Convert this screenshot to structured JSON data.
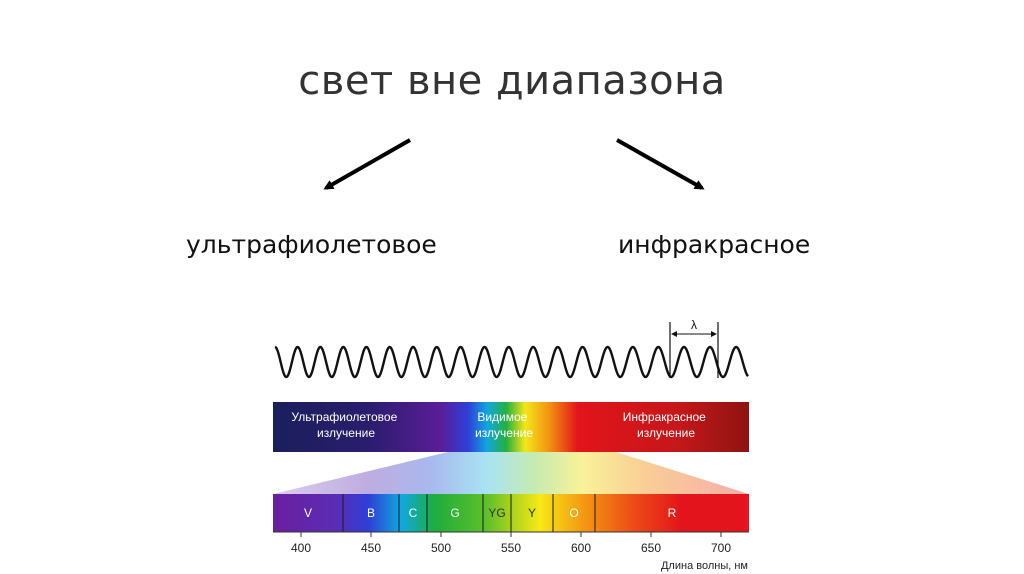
{
  "slide": {
    "title": "свет вне диапазона",
    "uv_label": "ультрафиолетовое",
    "ir_label": "инфракрасное"
  },
  "spectrum": {
    "lambda_symbol": "λ",
    "region_bar": {
      "uv": [
        "Ультрафиолетовое",
        "излучение"
      ],
      "visible": [
        "Видимое",
        "излучение"
      ],
      "ir": [
        "Инфракрасное",
        "излучение"
      ]
    },
    "bands": [
      {
        "name": "V",
        "from": 380,
        "to": 430
      },
      {
        "name": "B",
        "from": 430,
        "to": 470
      },
      {
        "name": "C",
        "from": 470,
        "to": 490
      },
      {
        "name": "G",
        "from": 490,
        "to": 530
      },
      {
        "name": "YG",
        "from": 530,
        "to": 550
      },
      {
        "name": "Y",
        "from": 550,
        "to": 580
      },
      {
        "name": "O",
        "from": 580,
        "to": 610
      },
      {
        "name": "R",
        "from": 610,
        "to": 720
      }
    ],
    "ticks": [
      "400",
      "450",
      "500",
      "550",
      "600",
      "650",
      "700"
    ],
    "axis_label": "Длина волны, нм",
    "colors": {
      "violet": "#6a1f9e",
      "blue": "#2f3fd6",
      "cyan": "#10a8e0",
      "green": "#1ead3c",
      "yellow_green": "#a9d21e",
      "yellow": "#f6e915",
      "orange": "#f39212",
      "red": "#e3141b",
      "uv_dark": "#1a1f5c",
      "ir_dark": "#8e1411"
    }
  }
}
